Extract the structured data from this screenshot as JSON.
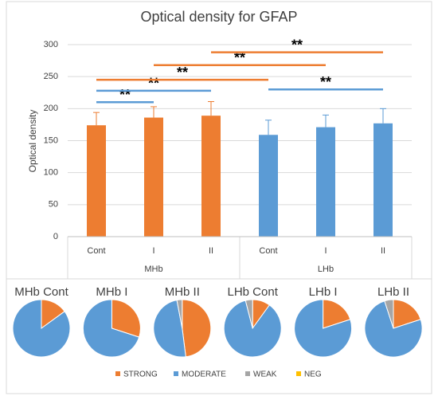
{
  "chart_data": [
    {
      "type": "bar",
      "title": "Optical density for GFAP",
      "y_label": "Optical density",
      "ylim": [
        0,
        300
      ],
      "yticks": [
        0,
        50,
        100,
        150,
        200,
        250,
        300
      ],
      "grid": true,
      "groups": [
        {
          "name": "MHb",
          "color": "#ed7d31",
          "categories": [
            "Cont",
            "I",
            "II"
          ],
          "values": [
            174,
            186,
            189
          ],
          "errors": [
            20,
            17,
            22
          ]
        },
        {
          "name": "LHb",
          "color": "#5b9bd5",
          "categories": [
            "Cont",
            "I",
            "II"
          ],
          "values": [
            159,
            171,
            177
          ],
          "errors": [
            23,
            19,
            23
          ]
        }
      ],
      "brackets": [
        {
          "from": [
            0,
            0
          ],
          "to": [
            0,
            1
          ],
          "level": 210,
          "color": "#5b9bd5",
          "label": "**"
        },
        {
          "from": [
            0,
            0
          ],
          "to": [
            0,
            2
          ],
          "level": 228,
          "color": "#5b9bd5",
          "label": "**"
        },
        {
          "from": [
            1,
            0
          ],
          "to": [
            1,
            2
          ],
          "level": 230,
          "color": "#5b9bd5",
          "label": "**"
        },
        {
          "from": [
            0,
            0
          ],
          "to": [
            1,
            0
          ],
          "level": 245,
          "color": "#ed7d31",
          "label": "**"
        },
        {
          "from": [
            0,
            1
          ],
          "to": [
            1,
            1
          ],
          "level": 268,
          "color": "#ed7d31",
          "label": "**"
        },
        {
          "from": [
            0,
            2
          ],
          "to": [
            1,
            2
          ],
          "level": 288,
          "color": "#ed7d31",
          "label": "**"
        }
      ]
    },
    {
      "type": "pie",
      "categories": [
        "STRONG",
        "MODERATE",
        "WEAK",
        "NEG"
      ],
      "colors": [
        "#ed7d31",
        "#5b9bd5",
        "#a5a5a5",
        "#ffc000"
      ],
      "pies": [
        {
          "title": "MHb Cont",
          "values": [
            15,
            85,
            0,
            0
          ]
        },
        {
          "title": "MHb I",
          "values": [
            30,
            70,
            0,
            0
          ]
        },
        {
          "title": "MHb II",
          "values": [
            48,
            49,
            3,
            0
          ]
        },
        {
          "title": "LHb Cont",
          "values": [
            10,
            86,
            4,
            0
          ]
        },
        {
          "title": "LHb I",
          "values": [
            20,
            80,
            0,
            0
          ]
        },
        {
          "title": "LHb II",
          "values": [
            20,
            75,
            5,
            0
          ]
        }
      ]
    }
  ]
}
